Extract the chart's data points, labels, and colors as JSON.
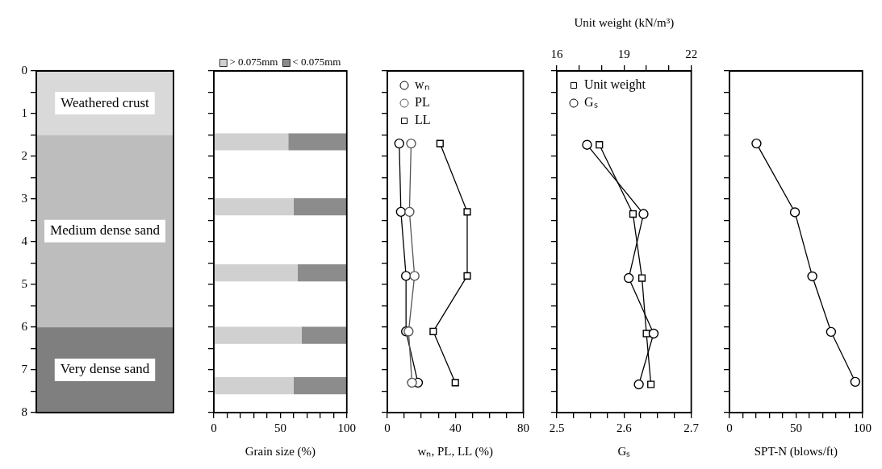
{
  "chart_data": [
    {
      "type": "bar",
      "stacked": true,
      "categories": [
        null
      ],
      "series": [
        {
          "name": "Weathered crust",
          "color": "#d9d9d9",
          "values": [
            1.5
          ]
        },
        {
          "name": "Medium dense sand",
          "color": "#bdbdbd",
          "values": [
            4.5
          ]
        },
        {
          "name": "Very dense sand",
          "color": "#7f7f7f",
          "values": [
            2
          ]
        }
      ],
      "ylim": [
        8,
        0
      ],
      "yticks": [
        0,
        {
          "value": 0.5,
          "label": null
        },
        1,
        {
          "value": 1.5,
          "label": null
        },
        2,
        {
          "value": 2.5,
          "label": null
        },
        3,
        {
          "value": 3.5,
          "label": null
        },
        4,
        {
          "value": 4.5,
          "label": null
        },
        5,
        {
          "value": 5.5,
          "label": null
        },
        6,
        {
          "value": 6.5,
          "label": null
        },
        7,
        {
          "value": 7.5,
          "label": null
        },
        8
      ],
      "tick_labels": "y"
    },
    {
      "type": "bar",
      "stacked": true,
      "orientation": "horizontal",
      "legend": "top",
      "xlabel": "Grain size (%)",
      "x": [
        1.66,
        3.18,
        4.73,
        6.19,
        7.37
      ],
      "series": [
        {
          "name": "> 0.075mm",
          "color": "#d0d0d0",
          "values": [
            56,
            60,
            63,
            66,
            60
          ]
        },
        {
          "name": "< 0.075mm",
          "color": "#8c8c8c",
          "values": [
            44,
            40,
            37,
            34,
            40
          ]
        }
      ],
      "xlim": [
        0,
        100
      ],
      "xticks": [
        0,
        {
          "value": 10,
          "label": null
        },
        {
          "value": 20,
          "label": null
        },
        {
          "value": 30,
          "label": null
        },
        {
          "value": 40,
          "label": null
        },
        50,
        {
          "value": 60,
          "label": null
        },
        {
          "value": 70,
          "label": null
        },
        {
          "value": 80,
          "label": null
        },
        {
          "value": 90,
          "label": null
        },
        100
      ],
      "ylim": [
        8,
        0
      ],
      "yticks": [
        0,
        {
          "value": 0.5,
          "label": null
        },
        1,
        {
          "value": 1.5,
          "label": null
        },
        2,
        {
          "value": 2.5,
          "label": null
        },
        3,
        {
          "value": 3.5,
          "label": null
        },
        4,
        {
          "value": 4.5,
          "label": null
        },
        5,
        {
          "value": 5.5,
          "label": null
        },
        6,
        {
          "value": 6.5,
          "label": null
        },
        7,
        {
          "value": 7.5,
          "label": null
        },
        8
      ],
      "tick_labels": "x"
    },
    {
      "type": "line",
      "xlabel": "wₙ, PL, LL (%)",
      "legend": "top left",
      "series": [
        {
          "name": "wₙ",
          "color": "#000000",
          "marker": "circle",
          "x": [
            7,
            8,
            11,
            11,
            18
          ],
          "values": [
            1.7,
            3.3,
            4.8,
            6.1,
            7.3
          ]
        },
        {
          "name": "PL",
          "color": "#555555",
          "marker": "circle",
          "x": [
            14,
            13,
            16,
            12.5,
            14.5
          ],
          "values": [
            1.7,
            3.3,
            4.8,
            6.1,
            7.3
          ]
        },
        {
          "name": "LL",
          "color": "#000000",
          "marker": "square",
          "x": [
            31,
            47,
            47,
            27,
            40
          ],
          "values": [
            1.7,
            3.3,
            4.8,
            6.1,
            7.3
          ]
        }
      ],
      "xlim": [
        0,
        80
      ],
      "xticks": [
        0,
        {
          "value": 10,
          "label": null
        },
        {
          "value": 20,
          "label": null
        },
        {
          "value": 30,
          "label": null
        },
        40,
        {
          "value": 50,
          "label": null
        },
        {
          "value": 60,
          "label": null
        },
        {
          "value": 70,
          "label": null
        },
        80
      ],
      "ylim": [
        8,
        0
      ],
      "yticks": [
        0,
        0.5,
        1,
        1.5,
        2,
        2.5,
        3,
        3.5,
        4,
        4.5,
        5,
        5.5,
        6,
        6.5,
        7,
        7.5,
        8
      ],
      "tick_labels": "x"
    },
    {
      "type": "line",
      "xlabel": "Gₛ",
      "x2label": "Unit weight (kN/m³)",
      "legend": "top left",
      "series": [
        {
          "name": "Unit weight",
          "color": "#000000",
          "marker": "square",
          "axis": "x2",
          "x": [
            17.9,
            19.4,
            19.8,
            20.0,
            20.2
          ],
          "values": [
            1.73,
            3.35,
            4.85,
            6.15,
            7.34
          ]
        },
        {
          "name": "Gₛ",
          "color": "#000000",
          "marker": "circle",
          "x": [
            2.545,
            2.629,
            2.607,
            2.644,
            2.622
          ],
          "values": [
            1.73,
            3.35,
            4.85,
            6.15,
            7.34
          ]
        }
      ],
      "xlim": [
        2.5,
        2.7
      ],
      "xticks": [
        2.5,
        {
          "value": 2.525,
          "label": null
        },
        {
          "value": 2.55,
          "label": null
        },
        {
          "value": 2.575,
          "label": null
        },
        2.6,
        {
          "value": 2.625,
          "label": null
        },
        {
          "value": 2.65,
          "label": null
        },
        {
          "value": 2.675,
          "label": null
        },
        2.7
      ],
      "x2lim": [
        16,
        22
      ],
      "x2ticks": [
        16,
        {
          "value": 17,
          "label": null
        },
        {
          "value": 18,
          "label": null
        },
        19,
        {
          "value": 20,
          "label": null
        },
        {
          "value": 21,
          "label": null
        },
        22
      ],
      "ylim": [
        8,
        0
      ],
      "yticks": [
        0,
        0.5,
        1,
        1.5,
        2,
        2.5,
        3,
        3.5,
        4,
        4.5,
        5,
        5.5,
        6,
        6.5,
        7,
        7.5,
        8
      ],
      "tick_labels": "x"
    },
    {
      "type": "line",
      "xlabel": "SPT-N (blows/ft)",
      "marker": "circle",
      "series": [
        {
          "color": "#000000",
          "x": [
            20.3,
            49.2,
            62.3,
            76.4,
            94.6
          ],
          "values": [
            1.7,
            3.31,
            4.81,
            6.11,
            7.28
          ]
        }
      ],
      "xlim": [
        0,
        100
      ],
      "xticks": [
        0,
        {
          "value": 10,
          "label": null
        },
        {
          "value": 20,
          "label": null
        },
        {
          "value": 30,
          "label": null
        },
        {
          "value": 40,
          "label": null
        },
        50,
        {
          "value": 60,
          "label": null
        },
        {
          "value": 70,
          "label": null
        },
        {
          "value": 80,
          "label": null
        },
        {
          "value": 90,
          "label": null
        },
        100
      ],
      "ylim": [
        8,
        0
      ],
      "yticks": [
        0,
        0.5,
        1,
        1.5,
        2,
        2.5,
        3,
        3.5,
        4,
        4.5,
        5,
        5.5,
        6,
        6.5,
        7,
        7.5,
        8
      ],
      "tick_labels": "x"
    }
  ]
}
